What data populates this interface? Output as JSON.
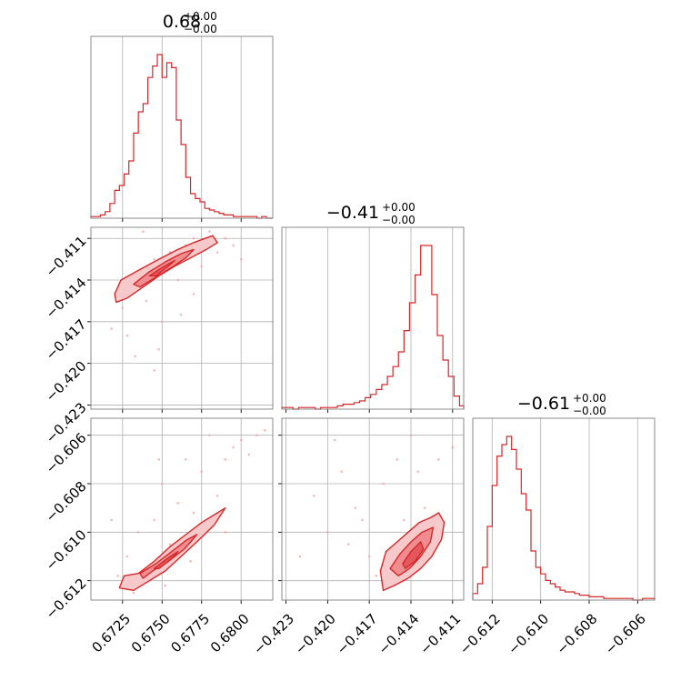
{
  "chart_data": {
    "type": "corner",
    "color": "#d62728",
    "fill_colors": [
      "#f8c9cb",
      "#ef8c90",
      "#e4575c"
    ],
    "scatter_color": "#f4a6a9",
    "grid": true,
    "parameters": [
      {
        "title": "0.68",
        "plus": "+0.00",
        "minus": "−0.00",
        "range": [
          0.6705,
          0.682
        ],
        "ticks": [
          0.6725,
          0.675,
          0.6775,
          0.68
        ],
        "ticklabels": [
          "0.6725",
          "0.6750",
          "0.6775",
          "0.6800"
        ],
        "hist_bins": [
          0.6705,
          0.6708,
          0.6711,
          0.6714,
          0.6717,
          0.672,
          0.6723,
          0.6726,
          0.6729,
          0.6732,
          0.6735,
          0.6738,
          0.6741,
          0.6744,
          0.6747,
          0.675,
          0.6753,
          0.6756,
          0.6759,
          0.6762,
          0.6765,
          0.6768,
          0.6771,
          0.6774,
          0.6777,
          0.678,
          0.6783,
          0.6786,
          0.6789,
          0.6792,
          0.6795,
          0.6798,
          0.6801,
          0.6804,
          0.6807,
          0.681,
          0.6813,
          0.6816,
          0.682
        ],
        "hist_counts": [
          1,
          1,
          2,
          4,
          9,
          17,
          20,
          27,
          35,
          52,
          65,
          70,
          86,
          93,
          100,
          86,
          95,
          92,
          60,
          45,
          25,
          15,
          12,
          10,
          6,
          5,
          4,
          3,
          2,
          2,
          1,
          1,
          1,
          1,
          1,
          0,
          1,
          0
        ]
      },
      {
        "title": "−0.41",
        "plus": "+0.00",
        "minus": "−0.00",
        "range": [
          -0.4233,
          -0.4102
        ],
        "ticks": [
          -0.423,
          -0.42,
          -0.417,
          -0.414,
          -0.411
        ],
        "ticklabels": [
          "−0.423",
          "−0.420",
          "−0.417",
          "−0.414",
          "−0.411"
        ],
        "hist_bins": [
          -0.4233,
          -0.4229,
          -0.4225,
          -0.4221,
          -0.4217,
          -0.4213,
          -0.4209,
          -0.4205,
          -0.4201,
          -0.4197,
          -0.4193,
          -0.4189,
          -0.4185,
          -0.4181,
          -0.4177,
          -0.4173,
          -0.4169,
          -0.4165,
          -0.4161,
          -0.4157,
          -0.4153,
          -0.4149,
          -0.4145,
          -0.4141,
          -0.4137,
          -0.4133,
          -0.4129,
          -0.4125,
          -0.4121,
          -0.4117,
          -0.4113,
          -0.4109,
          -0.4105,
          -0.4102
        ],
        "hist_counts": [
          1,
          1,
          0,
          1,
          1,
          1,
          0,
          1,
          1,
          1,
          2,
          3,
          3,
          4,
          5,
          7,
          9,
          12,
          15,
          20,
          26,
          35,
          48,
          65,
          82,
          100,
          100,
          70,
          45,
          30,
          20,
          8,
          2
        ]
      },
      {
        "title": "−0.61",
        "plus": "+0.00",
        "minus": "−0.00",
        "range": [
          -0.6128,
          -0.6053
        ],
        "ticks": [
          -0.612,
          -0.61,
          -0.608,
          -0.606
        ],
        "ticklabels": [
          "−0.612",
          "−0.610",
          "−0.608",
          "−0.606"
        ],
        "hist_bins": [
          -0.6128,
          -0.6126,
          -0.6124,
          -0.6122,
          -0.612,
          -0.6118,
          -0.6116,
          -0.6114,
          -0.6112,
          -0.611,
          -0.6108,
          -0.6106,
          -0.6104,
          -0.6102,
          -0.61,
          -0.6098,
          -0.6096,
          -0.6094,
          -0.6092,
          -0.609,
          -0.6088,
          -0.6086,
          -0.6084,
          -0.6082,
          -0.608,
          -0.6078,
          -0.6076,
          -0.6074,
          -0.6072,
          -0.607,
          -0.6068,
          -0.6066,
          -0.6064,
          -0.6062,
          -0.606,
          -0.6058,
          -0.6056,
          -0.6053
        ],
        "hist_counts": [
          4,
          10,
          20,
          45,
          70,
          88,
          95,
          100,
          92,
          80,
          65,
          55,
          30,
          20,
          16,
          12,
          10,
          8,
          6,
          5,
          5,
          4,
          3,
          3,
          2,
          2,
          2,
          1,
          1,
          1,
          1,
          1,
          1,
          0,
          0,
          1,
          1
        ]
      }
    ],
    "pairs": [
      {
        "x_param": 0,
        "y_param": 1,
        "points": [
          [
            0.6722,
            -0.415
          ],
          [
            0.6725,
            -0.416
          ],
          [
            0.673,
            -0.4145
          ],
          [
            0.6728,
            -0.418
          ],
          [
            0.6735,
            -0.4135
          ],
          [
            0.674,
            -0.4155
          ],
          [
            0.6745,
            -0.4125
          ],
          [
            0.675,
            -0.417
          ],
          [
            0.6755,
            -0.412
          ],
          [
            0.676,
            -0.414
          ],
          [
            0.6765,
            -0.4115
          ],
          [
            0.677,
            -0.411
          ],
          [
            0.6775,
            -0.413
          ],
          [
            0.678,
            -0.4105
          ],
          [
            0.6785,
            -0.412
          ],
          [
            0.679,
            -0.411
          ],
          [
            0.6795,
            -0.4115
          ],
          [
            0.6733,
            -0.4195
          ],
          [
            0.6748,
            -0.419
          ],
          [
            0.6762,
            -0.4165
          ],
          [
            0.6718,
            -0.4175
          ],
          [
            0.6738,
            -0.4105
          ],
          [
            0.677,
            -0.415
          ],
          [
            0.68,
            -0.4125
          ],
          [
            0.6745,
            -0.4205
          ]
        ],
        "contours": [
          {
            "level": 0,
            "polygon": [
              [
                0.672,
                -0.415
              ],
              [
                0.6724,
                -0.414
              ],
              [
                0.6735,
                -0.4133
              ],
              [
                0.6748,
                -0.4125
              ],
              [
                0.676,
                -0.4118
              ],
              [
                0.677,
                -0.4113
              ],
              [
                0.6782,
                -0.4108
              ],
              [
                0.6785,
                -0.4113
              ],
              [
                0.6778,
                -0.4118
              ],
              [
                0.6768,
                -0.4124
              ],
              [
                0.6758,
                -0.413
              ],
              [
                0.6748,
                -0.4137
              ],
              [
                0.6738,
                -0.4145
              ],
              [
                0.6728,
                -0.4153
              ],
              [
                0.6721,
                -0.4156
              ]
            ]
          },
          {
            "level": 1,
            "polygon": [
              [
                0.6732,
                -0.4143
              ],
              [
                0.6742,
                -0.4134
              ],
              [
                0.6752,
                -0.4127
              ],
              [
                0.6762,
                -0.4121
              ],
              [
                0.677,
                -0.4118
              ],
              [
                0.6765,
                -0.4124
              ],
              [
                0.6756,
                -0.4131
              ],
              [
                0.6746,
                -0.4138
              ],
              [
                0.6736,
                -0.4145
              ]
            ]
          },
          {
            "level": 2,
            "polygon": [
              [
                0.6742,
                -0.4137
              ],
              [
                0.675,
                -0.4131
              ],
              [
                0.6758,
                -0.4126
              ],
              [
                0.6754,
                -0.413
              ],
              [
                0.6746,
                -0.4137
              ]
            ]
          }
        ]
      },
      {
        "x_param": 0,
        "y_param": 2,
        "points": [
          [
            0.6722,
            -0.6118
          ],
          [
            0.6728,
            -0.611
          ],
          [
            0.6735,
            -0.61
          ],
          [
            0.674,
            -0.6115
          ],
          [
            0.6745,
            -0.6095
          ],
          [
            0.675,
            -0.608
          ],
          [
            0.6755,
            -0.6105
          ],
          [
            0.676,
            -0.6088
          ],
          [
            0.6765,
            -0.607
          ],
          [
            0.677,
            -0.6092
          ],
          [
            0.6775,
            -0.6075
          ],
          [
            0.678,
            -0.606
          ],
          [
            0.6785,
            -0.6085
          ],
          [
            0.679,
            -0.607
          ],
          [
            0.6795,
            -0.6065
          ],
          [
            0.68,
            -0.6062
          ],
          [
            0.6805,
            -0.6068
          ],
          [
            0.681,
            -0.606
          ],
          [
            0.6815,
            -0.6058
          ],
          [
            0.6732,
            -0.6125
          ],
          [
            0.6752,
            -0.6122
          ],
          [
            0.6768,
            -0.6112
          ],
          [
            0.6718,
            -0.6095
          ],
          [
            0.6748,
            -0.607
          ],
          [
            0.679,
            -0.61
          ]
        ],
        "contours": [
          {
            "level": 0,
            "polygon": [
              [
                0.6723,
                -0.6123
              ],
              [
                0.6726,
                -0.6118
              ],
              [
                0.6735,
                -0.6117
              ],
              [
                0.6745,
                -0.6112
              ],
              [
                0.6755,
                -0.6106
              ],
              [
                0.6765,
                -0.6101
              ],
              [
                0.6775,
                -0.6096
              ],
              [
                0.6785,
                -0.6092
              ],
              [
                0.679,
                -0.609
              ],
              [
                0.6783,
                -0.6097
              ],
              [
                0.6772,
                -0.6104
              ],
              [
                0.6762,
                -0.611
              ],
              [
                0.6752,
                -0.6116
              ],
              [
                0.6742,
                -0.612
              ],
              [
                0.6732,
                -0.6124
              ]
            ]
          },
          {
            "level": 1,
            "polygon": [
              [
                0.6736,
                -0.6117
              ],
              [
                0.6746,
                -0.6113
              ],
              [
                0.6756,
                -0.6108
              ],
              [
                0.6766,
                -0.6103
              ],
              [
                0.6772,
                -0.6101
              ],
              [
                0.6764,
                -0.6107
              ],
              [
                0.6754,
                -0.6112
              ],
              [
                0.6744,
                -0.6116
              ],
              [
                0.6738,
                -0.6119
              ]
            ]
          },
          {
            "level": 2,
            "polygon": [
              [
                0.6745,
                -0.6115
              ],
              [
                0.6753,
                -0.6111
              ],
              [
                0.676,
                -0.6108
              ],
              [
                0.6756,
                -0.6111
              ],
              [
                0.6748,
                -0.6115
              ]
            ]
          }
        ]
      },
      {
        "x_param": 1,
        "y_param": 2,
        "points": [
          [
            -0.42,
            -0.61
          ],
          [
            -0.418,
            -0.609
          ],
          [
            -0.417,
            -0.611
          ],
          [
            -0.416,
            -0.608
          ],
          [
            -0.415,
            -0.607
          ],
          [
            -0.421,
            -0.6085
          ],
          [
            -0.419,
            -0.6075
          ],
          [
            -0.414,
            -0.606
          ],
          [
            -0.413,
            -0.609
          ],
          [
            -0.412,
            -0.607
          ],
          [
            -0.411,
            -0.6065
          ],
          [
            -0.4165,
            -0.6118
          ],
          [
            -0.4175,
            -0.6095
          ],
          [
            -0.4185,
            -0.6105
          ],
          [
            -0.4155,
            -0.6122
          ],
          [
            -0.422,
            -0.611
          ],
          [
            -0.4195,
            -0.6062
          ],
          [
            -0.4145,
            -0.6095
          ],
          [
            -0.4135,
            -0.6075
          ],
          [
            -0.4125,
            -0.6105
          ]
        ],
        "contours": [
          {
            "level": 0,
            "polygon": [
              [
                -0.4162,
                -0.6116
              ],
              [
                -0.4158,
                -0.6108
              ],
              [
                -0.415,
                -0.6104
              ],
              [
                -0.4142,
                -0.61
              ],
              [
                -0.4134,
                -0.6096
              ],
              [
                -0.4126,
                -0.6094
              ],
              [
                -0.412,
                -0.6092
              ],
              [
                -0.4116,
                -0.6096
              ],
              [
                -0.4118,
                -0.6103
              ],
              [
                -0.4125,
                -0.611
              ],
              [
                -0.4133,
                -0.6115
              ],
              [
                -0.4142,
                -0.6119
              ],
              [
                -0.4152,
                -0.6122
              ],
              [
                -0.416,
                -0.6124
              ]
            ]
          },
          {
            "level": 1,
            "polygon": [
              [
                -0.4155,
                -0.6115
              ],
              [
                -0.4148,
                -0.6109
              ],
              [
                -0.414,
                -0.6104
              ],
              [
                -0.4132,
                -0.61
              ],
              [
                -0.4124,
                -0.6098
              ],
              [
                -0.4126,
                -0.6104
              ],
              [
                -0.4133,
                -0.611
              ],
              [
                -0.4141,
                -0.6115
              ],
              [
                -0.4149,
                -0.6118
              ]
            ]
          },
          {
            "level": 2,
            "polygon": [
              [
                -0.4146,
                -0.6113
              ],
              [
                -0.414,
                -0.6108
              ],
              [
                -0.4133,
                -0.6104
              ],
              [
                -0.4131,
                -0.6107
              ],
              [
                -0.4137,
                -0.6112
              ],
              [
                -0.4144,
                -0.6115
              ]
            ]
          }
        ]
      }
    ]
  }
}
